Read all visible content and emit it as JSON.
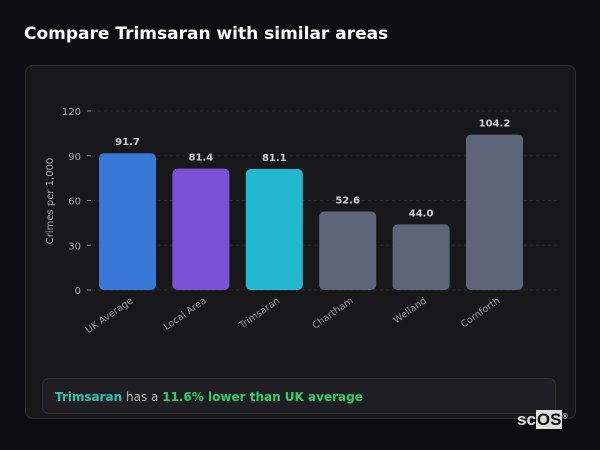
{
  "title": "Compare Trimsaran with similar areas",
  "chart_data": {
    "type": "bar",
    "categories": [
      "UK Average",
      "Local Area",
      "Trimsaran",
      "Chartham",
      "Welland",
      "Cornforth"
    ],
    "values": [
      91.7,
      81.4,
      81.1,
      52.6,
      44.0,
      104.2
    ],
    "value_labels": [
      "91.7",
      "81.4",
      "81.1",
      "52.6",
      "44.0",
      "104.2"
    ],
    "colors": [
      "#3a78d8",
      "#7b52d4",
      "#22b8cf",
      "#5c6678",
      "#5c6678",
      "#5c6678"
    ],
    "ylabel": "Crimes per 1,000",
    "yticks": [
      "0",
      "30",
      "60",
      "90",
      "120"
    ],
    "ylim": [
      0,
      120
    ],
    "grid": true
  },
  "summary": {
    "area": "Trimsaran",
    "middle": " has a ",
    "comparison": "11.6% lower than UK average"
  },
  "logo": {
    "text_a": "sc",
    "text_b": "OS",
    "mark": "®"
  }
}
